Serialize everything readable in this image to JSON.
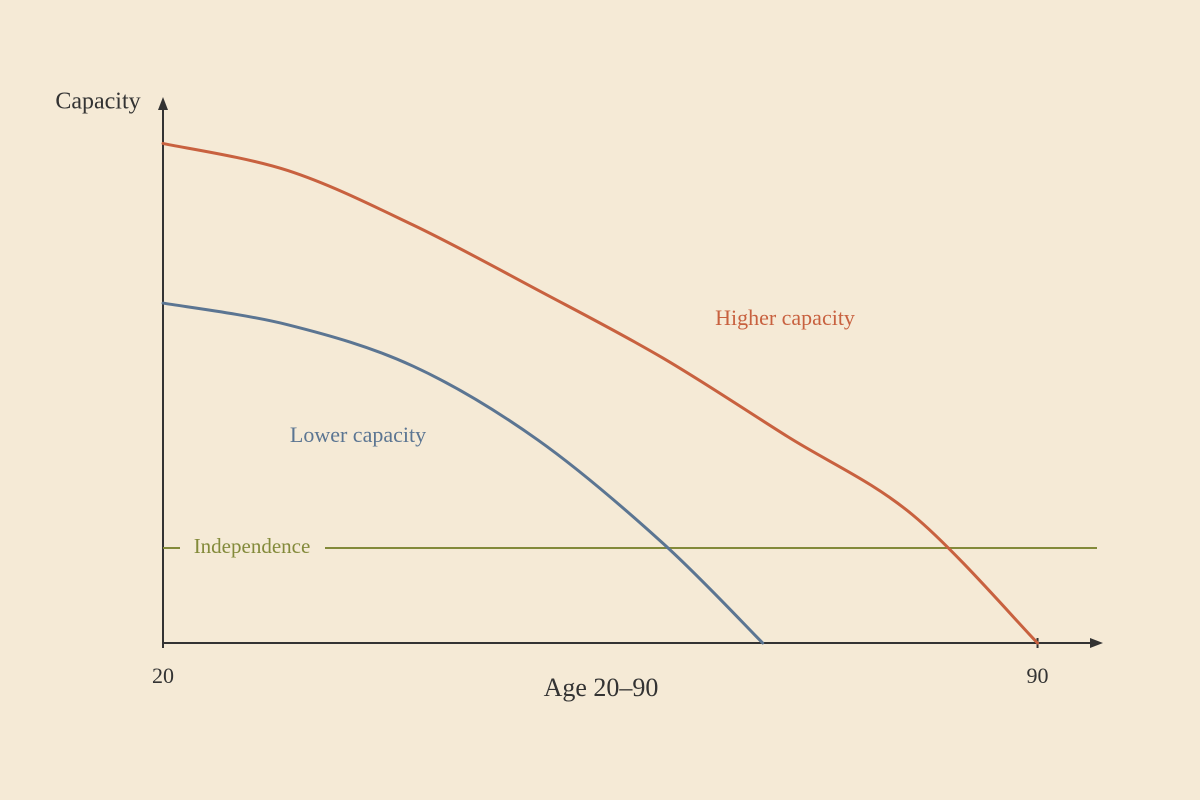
{
  "chart_data": {
    "type": "line",
    "ylabel": "Capacity",
    "xlabel": "Age 20–90",
    "xlim": [
      20,
      95
    ],
    "xticks": [
      20,
      90
    ],
    "ylim": [
      0,
      100
    ],
    "series": [
      {
        "name": "Higher capacity",
        "color": "#c8613f",
        "x": [
          20,
          30,
          40,
          50,
          60,
          70,
          80,
          90
        ],
        "values": [
          92,
          87,
          77,
          65,
          52.5,
          38,
          23.6,
          0
        ]
      },
      {
        "name": "Lower capacity",
        "color": "#5b7592",
        "x": [
          20,
          30,
          40,
          50,
          60,
          68
        ],
        "values": [
          62.6,
          58.6,
          51,
          37.4,
          18.4,
          0
        ]
      }
    ],
    "threshold": {
      "name": "Independence",
      "value": 17.5,
      "color": "#838a3a"
    }
  }
}
